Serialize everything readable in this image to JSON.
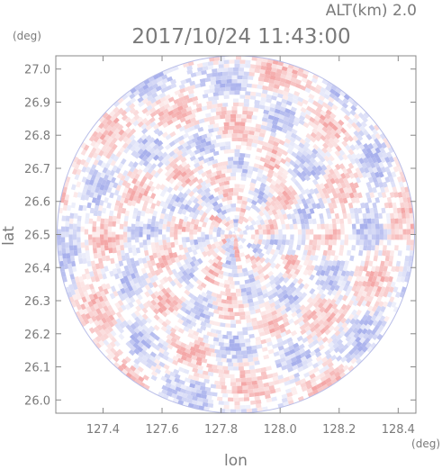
{
  "header": {
    "altitude_label": "ALT(km) 2.0",
    "timestamp": "2017/10/24 11:43:00",
    "y_unit": "(deg)",
    "x_unit": "(deg)"
  },
  "chart_data": {
    "type": "heatmap",
    "xlabel": "lon",
    "ylabel": "lat",
    "x_ticks": [
      "127.4",
      "127.6",
      "127.8",
      "128.0",
      "128.2",
      "128.4"
    ],
    "y_ticks": [
      "26.0",
      "26.1",
      "26.2",
      "26.3",
      "26.4",
      "26.5",
      "26.6",
      "26.7",
      "26.8",
      "26.9",
      "27.0"
    ],
    "xlim": [
      127.24,
      128.46
    ],
    "ylim": [
      25.96,
      27.04
    ],
    "center": {
      "lon": 127.85,
      "lat": 26.5
    },
    "radius_deg": 0.54,
    "grid": false,
    "colors": {
      "positive": "#f4a7a7",
      "negative": "#a8b0ec",
      "neutral": "#ffffff",
      "axis": "#7a7a7a"
    }
  }
}
